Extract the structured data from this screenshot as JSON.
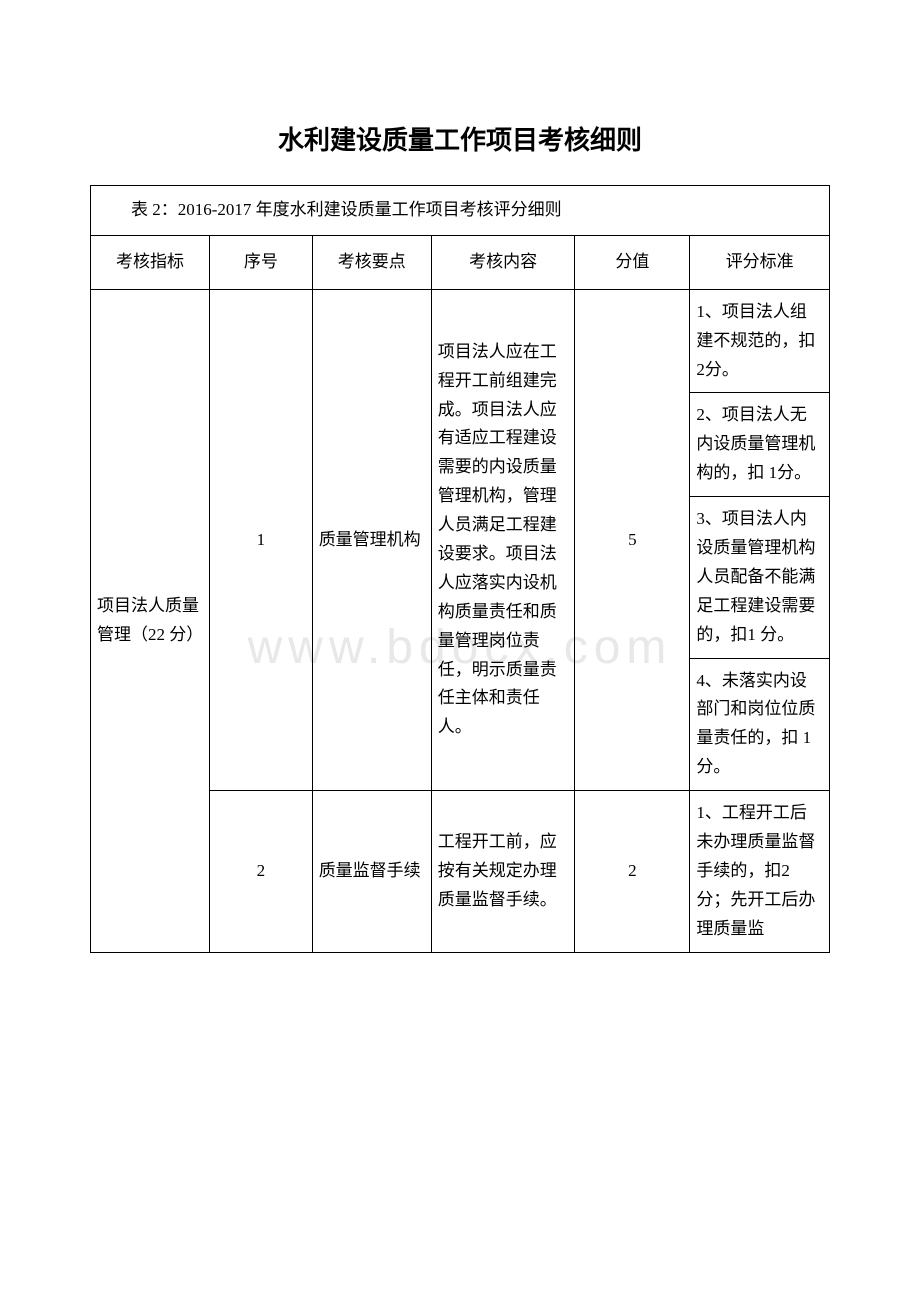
{
  "title": "水利建设质量工作项目考核细则",
  "table_caption": "表 2：2016-2017 年度水利建设质量工作项目考核评分细则",
  "watermark": "www.bdocx.com",
  "headers": {
    "col0": "考核指标",
    "col1": "序号",
    "col2": "考核要点",
    "col3": "考核内容",
    "col4": "分值",
    "col5": "评分标准"
  },
  "rows": [
    {
      "indicator": "项目法人质量管理（22 分）",
      "seq": "1",
      "point": "质量管理机构",
      "content": "项目法人应在工程开工前组建完成。项目法人应有适应工程建设需要的内设质量管理机构，管理人员满足工程建设要求。项目法人应落实内设机构质量责任和质量管理岗位责任，明示质量责任主体和责任人。",
      "score": "5",
      "criteria": [
        "1、项目法人组建不规范的，扣 2分。",
        "2、项目法人无内设质量管理机构的，扣 1分。",
        "3、项目法人内设质量管理机构人员配备不能满足工程建设需要的，扣1 分。",
        "4、未落实内设部门和岗位位质量责任的，扣 1 分。"
      ]
    },
    {
      "seq": "2",
      "point": "质量监督手续",
      "content": "工程开工前，应按有关规定办理质量监督手续。",
      "score": "2",
      "criteria": [
        "1、工程开工后未办理质量监督手续的，扣2 分；先开工后办理质量监"
      ]
    }
  ]
}
